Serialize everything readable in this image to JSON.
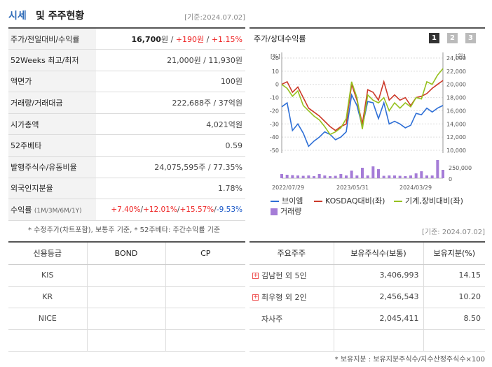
{
  "header": {
    "title_a": "시세",
    "title_b": "및 주주현황",
    "date": "[기준:2024.07.02]"
  },
  "info_rows": [
    {
      "label": "주가/전일대비/수익률"
    },
    {
      "label": "52Weeks 최고/최저",
      "value": "21,000원 / 11,930원"
    },
    {
      "label": "액면가",
      "value": "100원"
    },
    {
      "label": "거래량/거래대금",
      "value": "222,688주 / 37억원"
    },
    {
      "label": "시가총액",
      "value": "4,021억원"
    },
    {
      "label": "52주베타",
      "value": "0.59"
    },
    {
      "label": "발행주식수/유동비율",
      "value": "24,075,595주 / 77.35%"
    },
    {
      "label": "외국인지분율",
      "value": "1.78%"
    },
    {
      "label": "수익률",
      "label_sub": "(1M/3M/6M/1Y)"
    }
  ],
  "price": {
    "price": "16,700",
    "price_unit": "원",
    "sep": " / ",
    "change": "+190원",
    "rate": "+1.15%"
  },
  "returns": {
    "m1": "+7.40%",
    "m3": "+12.01%",
    "m6": "+15.57%",
    "y1": "-9.53%",
    "sep": "/"
  },
  "footnote1": "* 수정주가(차트포함), 보통주 기준, * 52주베타: 주간수익률 기준",
  "chart": {
    "title": "주가/상대수익률",
    "pages": [
      "1",
      "2",
      "3"
    ],
    "left_unit": "[%]",
    "right_unit": "[원]",
    "vol_tick": "250,000",
    "vol_zero": "0",
    "x_ticks": [
      "2022/07/29",
      "2023/05/31",
      "2024/03/29"
    ],
    "legend": {
      "s1": "브이엠",
      "s2": "KOSDAQ대비(좌)",
      "s3": "기계,장비대비(좌)",
      "s4": "거래량"
    }
  },
  "chart_data": {
    "type": "line",
    "y_left": {
      "label": "[%]",
      "ticks": [
        20,
        10,
        0,
        -10,
        -20,
        -30,
        -40,
        -50
      ]
    },
    "y_right": {
      "label": "[원]",
      "ticks": [
        24000,
        22000,
        20000,
        18000,
        16000,
        14000,
        12000,
        10000
      ]
    },
    "x_labels": [
      "2022/07/29",
      "2023/05/31",
      "2024/03/29"
    ],
    "series": [
      {
        "name": "브이엠",
        "color": "#2e6fd6",
        "axis": "left",
        "values": [
          -17,
          -14,
          -35,
          -30,
          -37,
          -47,
          -43,
          -40,
          -36,
          -38,
          -42,
          -40,
          -36,
          -8,
          -16,
          -32,
          -13,
          -14,
          -26,
          -14,
          -30,
          -28,
          -30,
          -33,
          -31,
          -22,
          -23,
          -18,
          -21,
          -18,
          -16
        ]
      },
      {
        "name": "KOSDAQ대비(좌)",
        "color": "#cc3a2a",
        "axis": "left",
        "values": [
          0,
          2,
          -6,
          -2,
          -10,
          -18,
          -21,
          -24,
          -28,
          -32,
          -35,
          -32,
          -30,
          0,
          -12,
          -30,
          -4,
          -6,
          -12,
          2,
          -12,
          -8,
          -12,
          -10,
          -16,
          -10,
          -9,
          -7,
          -3,
          0,
          3
        ]
      },
      {
        "name": "기계,장비대비(좌)",
        "color": "#96c11f",
        "axis": "left",
        "values": [
          0,
          -3,
          -9,
          -5,
          -16,
          -20,
          -24,
          -27,
          -32,
          -38,
          -36,
          -33,
          -26,
          2,
          -10,
          -34,
          -8,
          -12,
          -14,
          -10,
          -20,
          -14,
          -18,
          -14,
          -17,
          -10,
          -11,
          2,
          0,
          7,
          12
        ]
      }
    ],
    "volume": {
      "name": "거래량",
      "color": "#a57cd7",
      "y_ticks": [
        250000,
        0
      ],
      "values": [
        60000,
        50000,
        45000,
        40000,
        35000,
        40000,
        30000,
        60000,
        40000,
        30000,
        35000,
        60000,
        40000,
        110000,
        40000,
        150000,
        40000,
        170000,
        130000,
        35000,
        40000,
        40000,
        35000,
        30000,
        40000,
        70000,
        100000,
        40000,
        40000,
        260000,
        120000
      ]
    }
  },
  "footnote_date2": "[기준: 2024.07.02]",
  "credit": {
    "headers": [
      "신용등급",
      "BOND",
      "CP"
    ],
    "rows": [
      [
        "KIS",
        "",
        ""
      ],
      [
        "KR",
        "",
        ""
      ],
      [
        "NICE",
        "",
        ""
      ],
      [
        "",
        "",
        ""
      ]
    ]
  },
  "holders": {
    "headers": [
      "주요주주",
      "보유주식수(보통)",
      "보유지분(%)"
    ],
    "rows": [
      {
        "name": "김남헌 외 5인",
        "shares": "3,406,993",
        "pct": "14.15",
        "expand": true
      },
      {
        "name": "최우형 외 2인",
        "shares": "2,456,543",
        "pct": "10.20",
        "expand": true
      },
      {
        "name": "자사주",
        "shares": "2,045,411",
        "pct": "8.50",
        "expand": false
      }
    ],
    "footnote": "* 보유지분 : 보유지분주식수/지수산정주식수×100"
  }
}
